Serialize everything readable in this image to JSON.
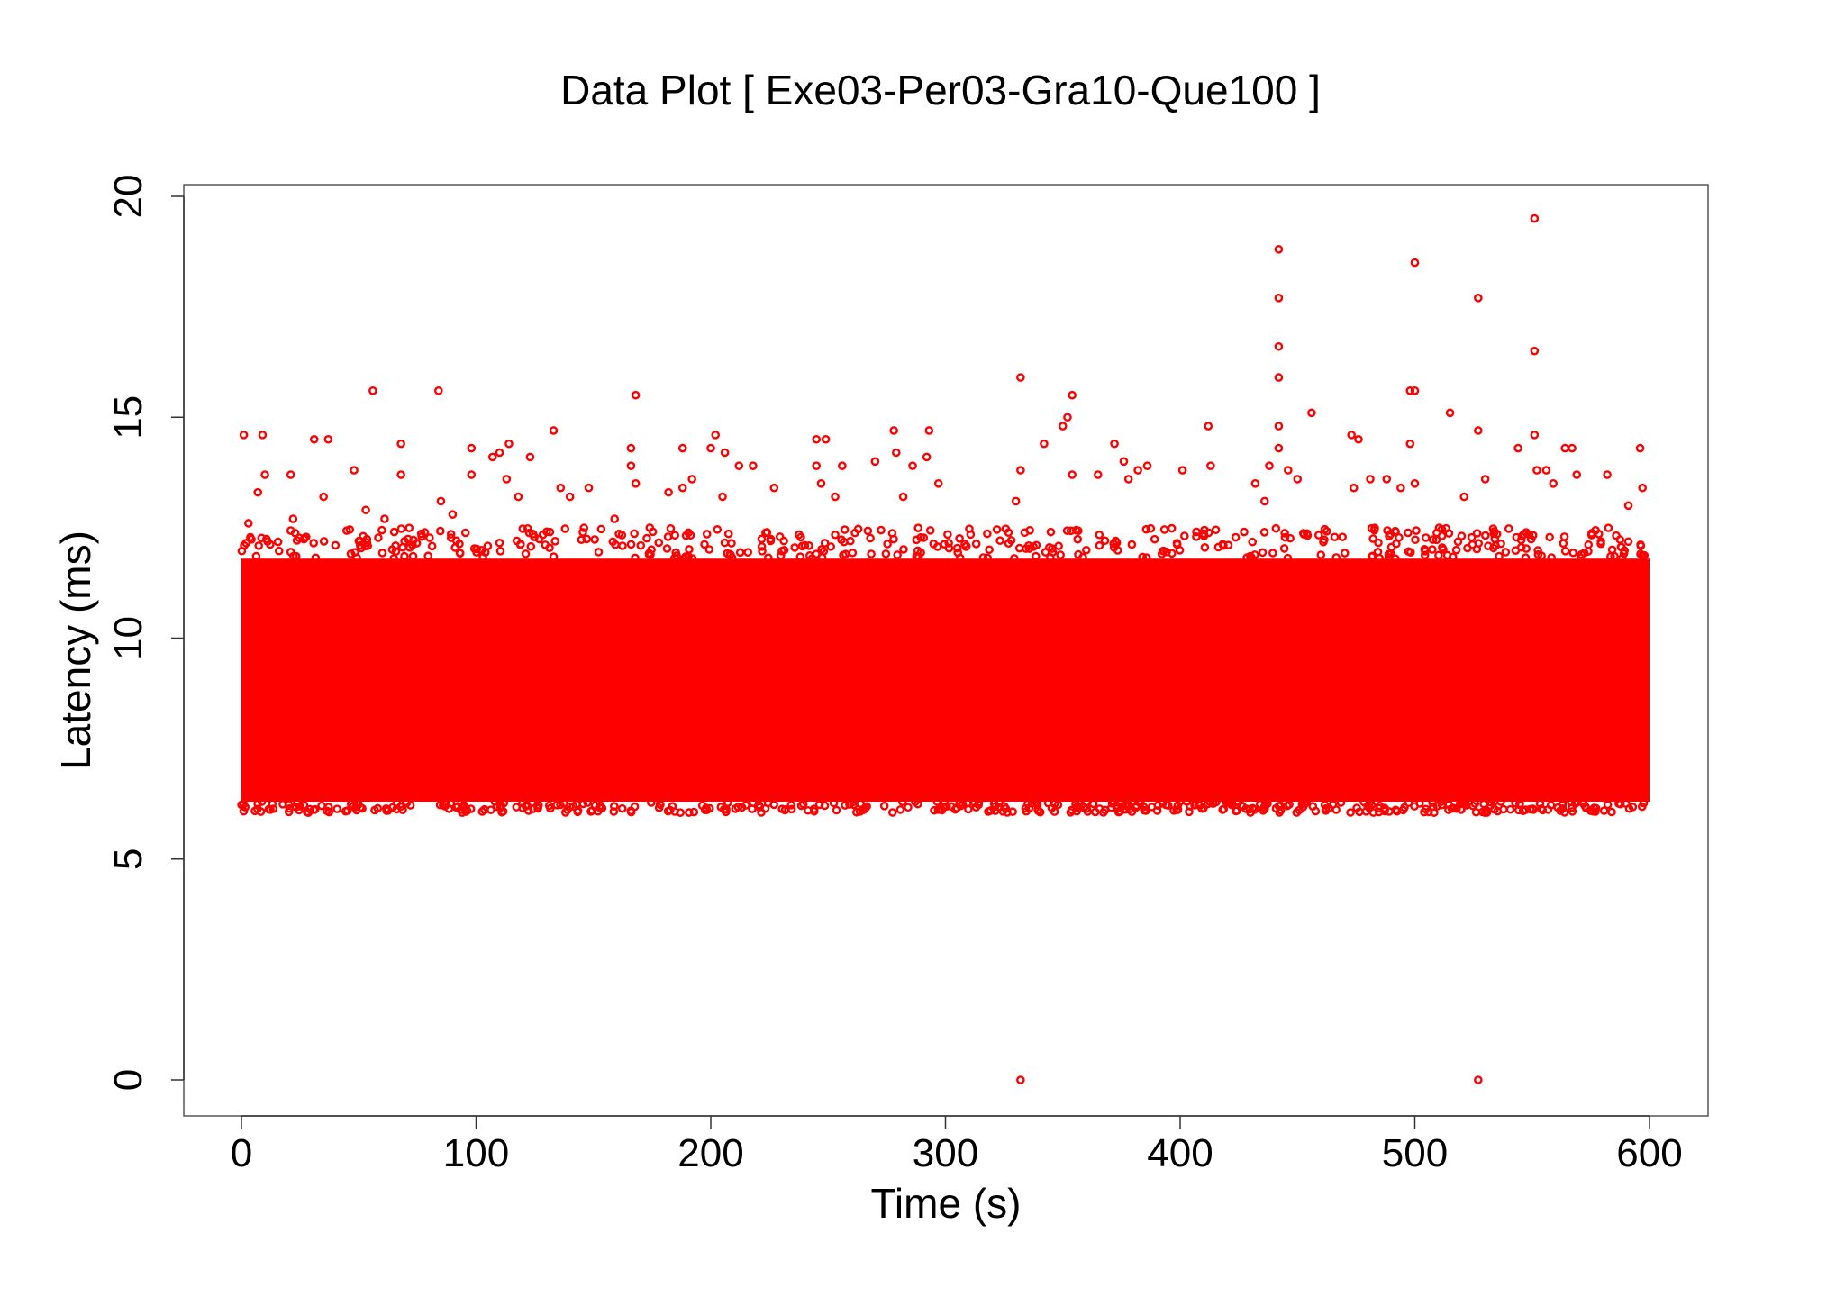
{
  "chart_data": {
    "type": "scatter",
    "title": "Data Plot [ Exe03-Per03-Gra10-Que100 ]",
    "xlabel": "Time (s)",
    "ylabel": "Latency (ms)",
    "xlim": [
      0,
      600
    ],
    "ylim": [
      0,
      20
    ],
    "x_ticks": [
      0,
      100,
      200,
      300,
      400,
      500,
      600
    ],
    "y_ticks": [
      0,
      5,
      10,
      15,
      20
    ],
    "x_tick_labels": [
      "0",
      "100",
      "200",
      "300",
      "400",
      "500",
      "600"
    ],
    "y_tick_labels": [
      "0",
      "5",
      "10",
      "15",
      "20"
    ],
    "grid": false,
    "legend": "none",
    "marker": "open-circle",
    "color": "#ff0000",
    "dense_band": {
      "x_range": [
        0,
        600
      ],
      "y_range": [
        6.3,
        11.8
      ]
    },
    "points": [
      {
        "x": 1,
        "y": 14.6
      },
      {
        "x": 9,
        "y": 14.6
      },
      {
        "x": 7,
        "y": 13.3
      },
      {
        "x": 10,
        "y": 13.7
      },
      {
        "x": 3,
        "y": 12.6
      },
      {
        "x": 21,
        "y": 13.7
      },
      {
        "x": 22,
        "y": 12.7
      },
      {
        "x": 31,
        "y": 14.5
      },
      {
        "x": 37,
        "y": 14.5
      },
      {
        "x": 35,
        "y": 13.2
      },
      {
        "x": 48,
        "y": 13.8
      },
      {
        "x": 53,
        "y": 12.9
      },
      {
        "x": 56,
        "y": 15.6
      },
      {
        "x": 61,
        "y": 12.7
      },
      {
        "x": 68,
        "y": 14.4
      },
      {
        "x": 68,
        "y": 13.7
      },
      {
        "x": 84,
        "y": 15.6
      },
      {
        "x": 85,
        "y": 13.1
      },
      {
        "x": 90,
        "y": 12.8
      },
      {
        "x": 98,
        "y": 14.3
      },
      {
        "x": 98,
        "y": 13.7
      },
      {
        "x": 107,
        "y": 14.1
      },
      {
        "x": 110,
        "y": 14.2
      },
      {
        "x": 113,
        "y": 13.6
      },
      {
        "x": 114,
        "y": 14.4
      },
      {
        "x": 118,
        "y": 13.2
      },
      {
        "x": 123,
        "y": 14.1
      },
      {
        "x": 133,
        "y": 14.7
      },
      {
        "x": 136,
        "y": 13.4
      },
      {
        "x": 140,
        "y": 13.2
      },
      {
        "x": 148,
        "y": 13.4
      },
      {
        "x": 159,
        "y": 12.7
      },
      {
        "x": 166,
        "y": 14.3
      },
      {
        "x": 166,
        "y": 13.9
      },
      {
        "x": 168,
        "y": 15.5
      },
      {
        "x": 168,
        "y": 13.5
      },
      {
        "x": 174,
        "y": 12.5
      },
      {
        "x": 182,
        "y": 13.3
      },
      {
        "x": 188,
        "y": 14.3
      },
      {
        "x": 188,
        "y": 13.4
      },
      {
        "x": 192,
        "y": 13.6
      },
      {
        "x": 200,
        "y": 14.3
      },
      {
        "x": 202,
        "y": 14.6
      },
      {
        "x": 206,
        "y": 14.2
      },
      {
        "x": 205,
        "y": 13.2
      },
      {
        "x": 212,
        "y": 13.9
      },
      {
        "x": 218,
        "y": 13.9
      },
      {
        "x": 227,
        "y": 13.4
      },
      {
        "x": 245,
        "y": 14.5
      },
      {
        "x": 249,
        "y": 14.5
      },
      {
        "x": 245,
        "y": 13.9
      },
      {
        "x": 247,
        "y": 13.5
      },
      {
        "x": 253,
        "y": 13.2
      },
      {
        "x": 256,
        "y": 13.9
      },
      {
        "x": 270,
        "y": 14.0
      },
      {
        "x": 278,
        "y": 14.7
      },
      {
        "x": 279,
        "y": 14.2
      },
      {
        "x": 282,
        "y": 13.2
      },
      {
        "x": 286,
        "y": 13.9
      },
      {
        "x": 293,
        "y": 14.7
      },
      {
        "x": 292,
        "y": 14.1
      },
      {
        "x": 297,
        "y": 13.5
      },
      {
        "x": 332,
        "y": 15.9
      },
      {
        "x": 332,
        "y": 13.8
      },
      {
        "x": 330,
        "y": 13.1
      },
      {
        "x": 332,
        "y": 0.0
      },
      {
        "x": 342,
        "y": 14.4
      },
      {
        "x": 350,
        "y": 14.8
      },
      {
        "x": 352,
        "y": 15.0
      },
      {
        "x": 354,
        "y": 15.5
      },
      {
        "x": 354,
        "y": 13.7
      },
      {
        "x": 365,
        "y": 13.7
      },
      {
        "x": 372,
        "y": 14.4
      },
      {
        "x": 376,
        "y": 14.0
      },
      {
        "x": 378,
        "y": 13.6
      },
      {
        "x": 382,
        "y": 13.8
      },
      {
        "x": 386,
        "y": 13.9
      },
      {
        "x": 401,
        "y": 13.8
      },
      {
        "x": 412,
        "y": 14.8
      },
      {
        "x": 413,
        "y": 13.9
      },
      {
        "x": 432,
        "y": 13.5
      },
      {
        "x": 436,
        "y": 13.1
      },
      {
        "x": 438,
        "y": 13.9
      },
      {
        "x": 442,
        "y": 18.8
      },
      {
        "x": 442,
        "y": 17.7
      },
      {
        "x": 442,
        "y": 16.6
      },
      {
        "x": 442,
        "y": 15.9
      },
      {
        "x": 442,
        "y": 14.8
      },
      {
        "x": 442,
        "y": 14.3
      },
      {
        "x": 446,
        "y": 13.8
      },
      {
        "x": 450,
        "y": 13.6
      },
      {
        "x": 456,
        "y": 15.1
      },
      {
        "x": 473,
        "y": 14.6
      },
      {
        "x": 476,
        "y": 14.5
      },
      {
        "x": 474,
        "y": 13.4
      },
      {
        "x": 481,
        "y": 13.6
      },
      {
        "x": 488,
        "y": 13.6
      },
      {
        "x": 494,
        "y": 13.4
      },
      {
        "x": 498,
        "y": 14.4
      },
      {
        "x": 498,
        "y": 15.6
      },
      {
        "x": 500,
        "y": 15.6
      },
      {
        "x": 500,
        "y": 18.5
      },
      {
        "x": 500,
        "y": 13.5
      },
      {
        "x": 515,
        "y": 15.1
      },
      {
        "x": 521,
        "y": 13.2
      },
      {
        "x": 527,
        "y": 17.7
      },
      {
        "x": 527,
        "y": 14.7
      },
      {
        "x": 527,
        "y": 0.0
      },
      {
        "x": 530,
        "y": 13.6
      },
      {
        "x": 544,
        "y": 14.3
      },
      {
        "x": 551,
        "y": 19.5
      },
      {
        "x": 551,
        "y": 16.5
      },
      {
        "x": 551,
        "y": 14.6
      },
      {
        "x": 552,
        "y": 13.8
      },
      {
        "x": 556,
        "y": 13.8
      },
      {
        "x": 559,
        "y": 13.5
      },
      {
        "x": 564,
        "y": 14.3
      },
      {
        "x": 567,
        "y": 14.3
      },
      {
        "x": 569,
        "y": 13.7
      },
      {
        "x": 582,
        "y": 13.7
      },
      {
        "x": 596,
        "y": 14.3
      },
      {
        "x": 597,
        "y": 13.4
      },
      {
        "x": 591,
        "y": 13.0
      }
    ]
  }
}
